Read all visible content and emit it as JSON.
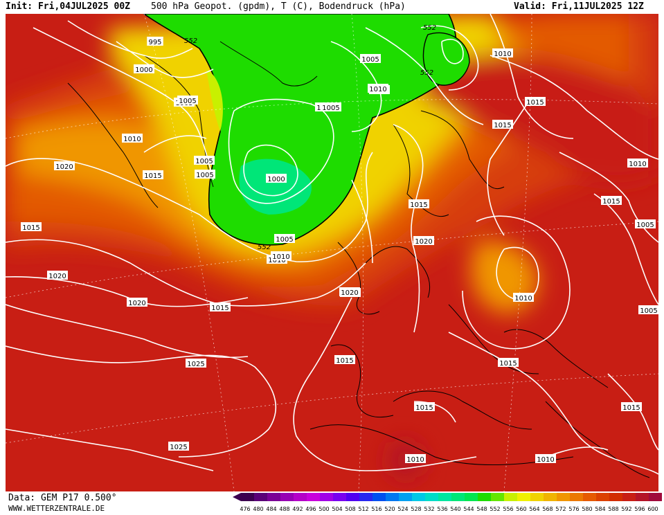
{
  "header": {
    "init": "Init: Fri,04JUL2025 00Z",
    "title": "500 hPa Geopot. (gpdm), T (C), Bodendruck (hPa)",
    "valid": "Valid: Fri,11JUL2025 12Z"
  },
  "footer": {
    "data_source": "Data: GEM P17 0.500°",
    "website": "WWW.WETTERZENTRALE.DE"
  },
  "colorbar": {
    "labels": [
      "476",
      "480",
      "484",
      "488",
      "492",
      "496",
      "500",
      "504",
      "508",
      "512",
      "516",
      "520",
      "524",
      "528",
      "532",
      "536",
      "540",
      "544",
      "548",
      "552",
      "556",
      "560",
      "564",
      "568",
      "572",
      "576",
      "580",
      "584",
      "588",
      "592",
      "596",
      "600"
    ],
    "colors": [
      "#3c0050",
      "#5a0078",
      "#7a0096",
      "#9600b4",
      "#b400c8",
      "#c800dc",
      "#a000e6",
      "#7800f0",
      "#5000f0",
      "#2828f0",
      "#0050f0",
      "#0078f0",
      "#00a0f0",
      "#00c8e6",
      "#00dcc8",
      "#00e6a0",
      "#00e678",
      "#00e650",
      "#1edc00",
      "#64e600",
      "#c8f000",
      "#f0f000",
      "#f0d200",
      "#f0b400",
      "#f09600",
      "#eb7800",
      "#e65a00",
      "#dc4100",
      "#d22d00",
      "#c81e14",
      "#b41428",
      "#a00a3c"
    ]
  },
  "isobar_labels": [
    {
      "text": "1020"
    },
    {
      "text": "1015"
    },
    {
      "text": "1010"
    },
    {
      "text": "1005"
    },
    {
      "text": "1000"
    },
    {
      "text": "995"
    },
    {
      "text": "1015"
    },
    {
      "text": "1020"
    },
    {
      "text": "1020"
    },
    {
      "text": "1015"
    },
    {
      "text": "1025"
    },
    {
      "text": "1025"
    },
    {
      "text": "1005"
    },
    {
      "text": "1010"
    },
    {
      "text": "1000"
    },
    {
      "text": "1005"
    },
    {
      "text": "1005"
    },
    {
      "text": "1010"
    },
    {
      "text": "1005"
    },
    {
      "text": "1015"
    },
    {
      "text": "1020"
    },
    {
      "text": "1020"
    },
    {
      "text": "1015"
    },
    {
      "text": "1015"
    },
    {
      "text": "1010"
    },
    {
      "text": "1015"
    },
    {
      "text": "1010"
    },
    {
      "text": "1015"
    },
    {
      "text": "1010"
    },
    {
      "text": "1015"
    },
    {
      "text": "1010"
    },
    {
      "text": "1005"
    },
    {
      "text": "1005"
    },
    {
      "text": "1010"
    },
    {
      "text": "1005"
    },
    {
      "text": "1005"
    },
    {
      "text": "1010"
    },
    {
      "text": "1015"
    },
    {
      "text": "1020"
    },
    {
      "text": "1015"
    },
    {
      "text": "1010"
    },
    {
      "text": "1005"
    }
  ],
  "contour_552_labels": [
    "552",
    "552",
    "552",
    "552"
  ]
}
